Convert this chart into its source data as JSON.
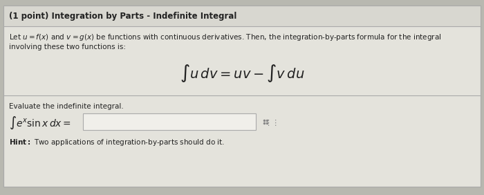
{
  "title": "(1 point) Integration by Parts - Indefinite Integral",
  "line1": "Let $u = f(x)$ and $v = g(x)$ be functions with continuous derivatives. Then, the integration-by-parts formula for the integral",
  "line2": "involving these two functions is:",
  "formula": "$\\int u\\, dv = uv - \\int v\\, du$",
  "evaluate_text": "Evaluate the indefinite integral.",
  "integral_expr": "$\\int e^x \\sin x\\, dx =$",
  "hint_bold": "Hint:",
  "hint_rest": " Two applications of integration-by-parts should do it.",
  "bg_color": "#b8b8b0",
  "card_color": "#e4e3dc",
  "card_top_color": "#d8d7d0",
  "divider_color": "#aaaaaa",
  "input_box_color": "#f0efea",
  "text_color": "#222222",
  "grid_color": "#888888"
}
